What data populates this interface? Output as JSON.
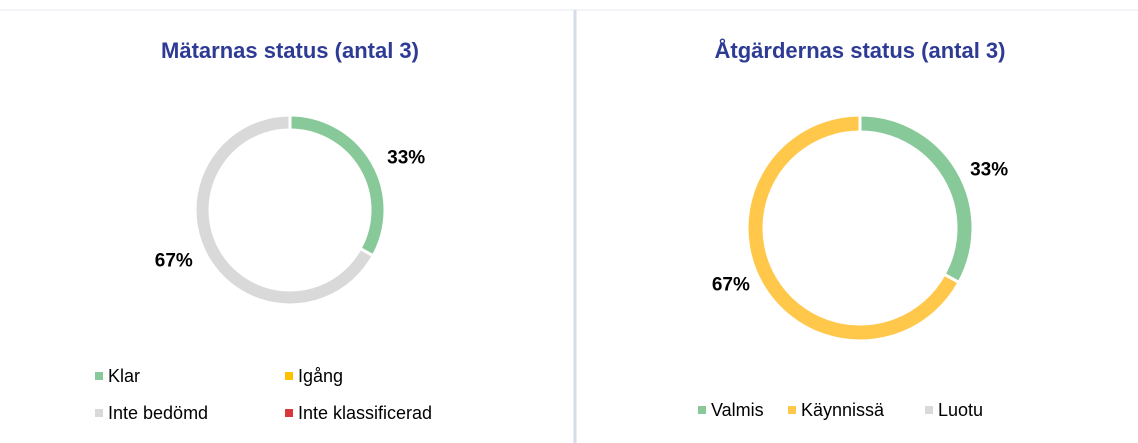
{
  "chart_data": [
    {
      "type": "donut",
      "title": "Mätarnas status (antal 3)",
      "categories": [
        "Klar",
        "Igång",
        "Inte bedömd",
        "Inte klassificerad"
      ],
      "values": [
        33,
        0,
        67,
        0
      ],
      "value_labels": [
        "33%",
        null,
        "67%",
        null
      ],
      "colors": [
        "#88c999",
        "#ffc000",
        "#d9d9d9",
        "#d9383a"
      ]
    },
    {
      "type": "donut",
      "title": "Åtgärdernas status (antal 3)",
      "categories": [
        "Valmis",
        "Käynnissä",
        "Luotu"
      ],
      "values": [
        33,
        67,
        0
      ],
      "value_labels": [
        "33%",
        "67%",
        null
      ],
      "colors": [
        "#88c999",
        "#ffc84b",
        "#d9d9d9"
      ]
    }
  ]
}
